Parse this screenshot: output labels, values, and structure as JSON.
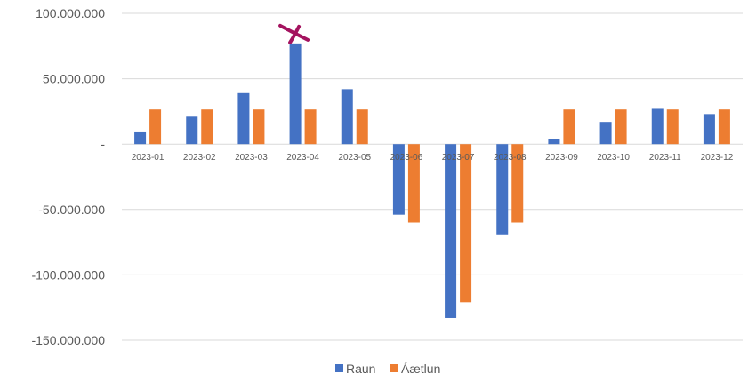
{
  "chart_data": {
    "type": "bar",
    "title": "",
    "xlabel": "",
    "ylabel": "",
    "categories": [
      "2023-01",
      "2023-02",
      "2023-03",
      "2023-04",
      "2023-05",
      "2023-06",
      "2023-07",
      "2023-08",
      "2023-09",
      "2023-10",
      "2023-11",
      "2023-12"
    ],
    "series": [
      {
        "name": "Raun",
        "color": "#4472C4",
        "values": [
          9000000,
          21000000,
          39000000,
          77000000,
          42000000,
          -54000000,
          -133000000,
          -69000000,
          4000000,
          17000000,
          27000000,
          23000000
        ]
      },
      {
        "name": "Áætlun",
        "color": "#ED7D31",
        "values": [
          26500000,
          26500000,
          26500000,
          26500000,
          26500000,
          -60000000,
          -121000000,
          -60000000,
          26500000,
          26500000,
          26500000,
          26500000
        ]
      }
    ],
    "ylim": [
      -150000000,
      100000000
    ],
    "yticks": [
      {
        "value": 100000000,
        "label": "100.000.000"
      },
      {
        "value": 50000000,
        "label": "50.000.000"
      },
      {
        "value": 0,
        "label": "-"
      },
      {
        "value": -50000000,
        "label": "-50.000.000"
      },
      {
        "value": -100000000,
        "label": "-100.000.000"
      },
      {
        "value": -150000000,
        "label": "-150.000.000"
      }
    ],
    "grid": true,
    "legend_position": "bottom",
    "annotation": {
      "mark": "x-cross",
      "category": "2023-04",
      "series": "Raun",
      "color": "#A4135F"
    }
  }
}
